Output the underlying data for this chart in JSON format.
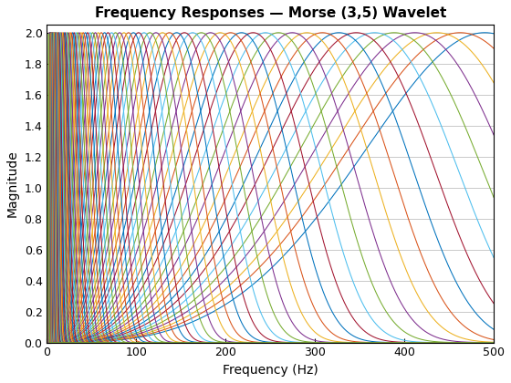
{
  "title": "Frequency Responses — Morse (3,5) Wavelet",
  "xlabel": "Frequency (Hz)",
  "ylabel": "Magnitude",
  "xlim": [
    0,
    500
  ],
  "ylim": [
    0,
    2.05
  ],
  "n_curves": 96,
  "beta": 3,
  "gamma": 5,
  "fs": 1000,
  "yticks": [
    0,
    0.2,
    0.4,
    0.6,
    0.8,
    1.0,
    1.2,
    1.4,
    1.6,
    1.8,
    2.0
  ],
  "xticks": [
    0,
    100,
    200,
    300,
    400,
    500
  ],
  "background_color": "#ffffff",
  "grid_color": "#c0c0c0",
  "title_fontsize": 11,
  "label_fontsize": 10,
  "tick_fontsize": 9,
  "matlab_colors": [
    "#0072BD",
    "#D95319",
    "#EDB120",
    "#7E2F8E",
    "#77AC30",
    "#4DBEEE",
    "#A2142F"
  ]
}
